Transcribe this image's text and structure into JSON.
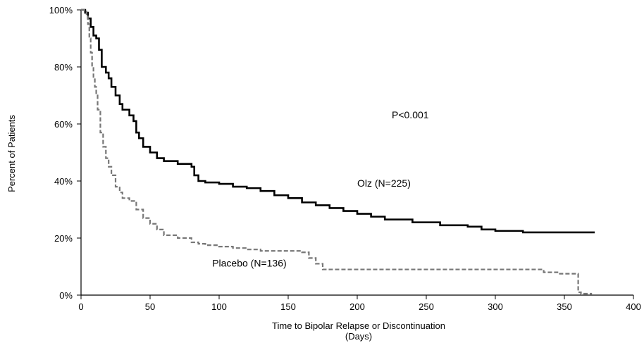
{
  "chart_data": {
    "type": "line",
    "title": "",
    "xlabel": "Time to Bipolar Relapse or Discontinuation",
    "xlabel_units": "(Days)",
    "ylabel": "Percent of Patients",
    "xlim": [
      0,
      400
    ],
    "ylim": [
      0,
      100
    ],
    "xticks": [
      0,
      50,
      100,
      150,
      200,
      250,
      300,
      350,
      400
    ],
    "yticks": [
      0,
      20,
      40,
      60,
      80,
      100
    ],
    "ytick_labels": [
      "0%",
      "20%",
      "40%",
      "60%",
      "80%",
      "100%"
    ],
    "grid": false,
    "legend": "none",
    "series": [
      {
        "name": "Olz (N=225)",
        "color": "#000000",
        "style": "solid-step",
        "x": [
          0,
          3,
          5,
          7,
          9,
          11,
          13,
          15,
          18,
          20,
          22,
          25,
          28,
          30,
          35,
          38,
          40,
          42,
          45,
          50,
          55,
          60,
          70,
          80,
          82,
          85,
          90,
          100,
          110,
          120,
          130,
          140,
          150,
          160,
          170,
          180,
          190,
          200,
          210,
          220,
          240,
          260,
          280,
          290,
          300,
          320,
          340,
          372
        ],
        "y": [
          100,
          99,
          97,
          94,
          91,
          90,
          86,
          80,
          78,
          76,
          73,
          70,
          67,
          65,
          63,
          61,
          57,
          55,
          52,
          50,
          48,
          47,
          46,
          45,
          42,
          40,
          39.5,
          39,
          38,
          37.5,
          36.5,
          35,
          34,
          32.5,
          31.5,
          30.5,
          29.5,
          28.5,
          27.5,
          26.5,
          25.5,
          24.5,
          24,
          23,
          22.5,
          22,
          22,
          22
        ]
      },
      {
        "name": "Placebo (N=136)",
        "color": "#777777",
        "style": "dashed-step",
        "x": [
          0,
          4,
          5,
          6,
          7,
          8,
          9,
          10,
          11,
          12,
          14,
          16,
          18,
          20,
          22,
          25,
          28,
          30,
          35,
          40,
          45,
          50,
          55,
          60,
          70,
          80,
          85,
          90,
          100,
          110,
          120,
          130,
          140,
          160,
          165,
          170,
          175,
          200,
          250,
          300,
          335,
          345,
          358,
          360,
          362,
          370
        ],
        "y": [
          100,
          98,
          95,
          90,
          85,
          80,
          76,
          73,
          70,
          65,
          57,
          52,
          48,
          45,
          42,
          38,
          36,
          34,
          33,
          30,
          27,
          25,
          23,
          21,
          20,
          18.5,
          18,
          17.5,
          17,
          16.5,
          16,
          15.5,
          15.5,
          15,
          13,
          11,
          9,
          9,
          9,
          9,
          8,
          7.5,
          7.5,
          1,
          0.5,
          0.5
        ]
      }
    ],
    "annotations": [
      {
        "text": "P<0.001",
        "x": 225,
        "y": 62
      },
      {
        "text": "Olz (N=225)",
        "x": 200,
        "y": 38
      },
      {
        "text": "Placebo (N=136)",
        "x": 95,
        "y": 10
      }
    ]
  }
}
